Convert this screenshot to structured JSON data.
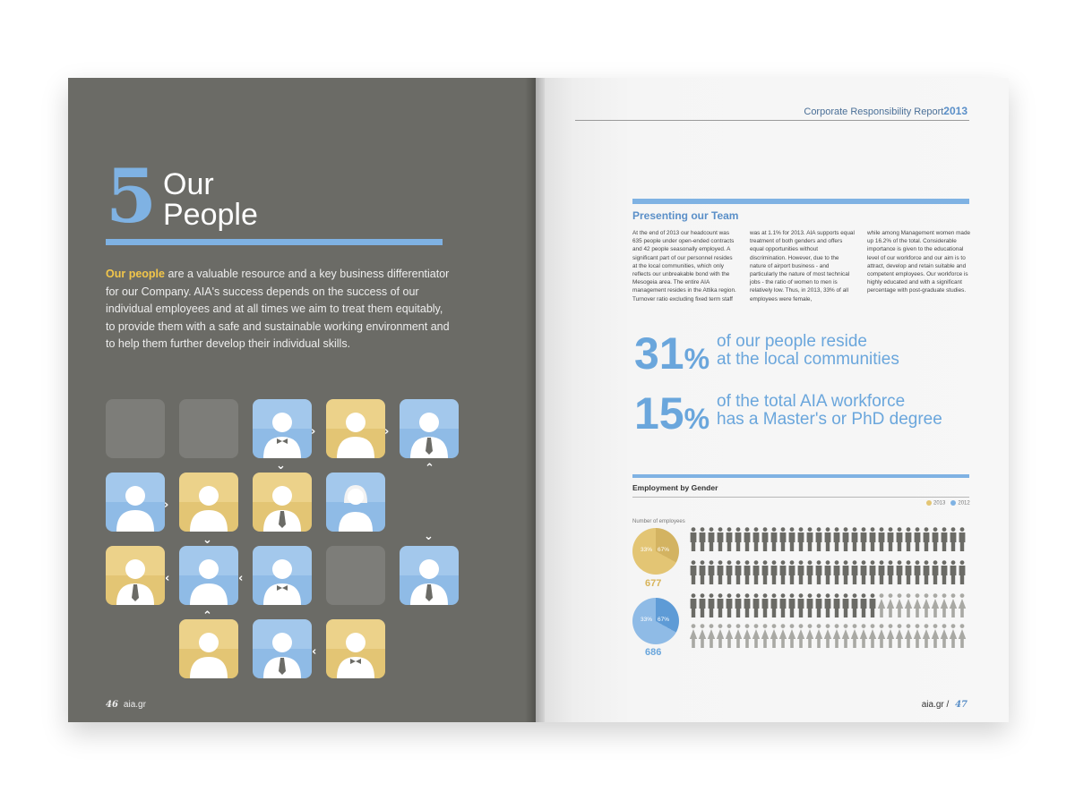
{
  "left": {
    "chapter_number": "5",
    "chapter_title_line1": "Our",
    "chapter_title_line2": "People",
    "intro_highlight": "Our people",
    "intro_rest": " are a valuable resource and a key business differentiator for our Company. AIA's success depends on the success of our individual employees and at all times we aim to treat them equitably, to provide them with a safe and sustainable working environment and to help them further develop their individual skills.",
    "folio_number": "46",
    "folio_site": "aia.gr"
  },
  "right": {
    "header_text": "Corporate Responsibility Report",
    "header_year": "2013",
    "section_title": "Presenting our Team",
    "col1": "At the end of 2013 our headcount was 635 people under open-ended contracts and 42 people seasonally employed. A significant part of our personnel resides at the local communities, which only reflects our unbreakable bond with the Mesogeia area. The entire AIA management resides in the Attika region. Turnover ratio excluding fixed term staff",
    "col2": "was at 1.1% for 2013.  AIA supports equal treatment of both genders and offers equal opportunities without discrimination. However, due to the nature of airport business - and particularly the nature of most technical jobs - the ratio of women to men is relatively low. Thus, in 2013, 33% of all employees were female,",
    "col3": "while among Management women made up 16.2% of the total.  Considerable importance is given to the educational level of our workforce and our aim is to attract, develop and retain suitable and competent employees. Our workforce is highly educated and with a significant percentage with post-graduate studies.",
    "stat1_value": "31",
    "stat1_unit": "%",
    "stat1_line1": "of our people reside",
    "stat1_line2": "at the local communities",
    "stat2_value": "15",
    "stat2_unit": "%",
    "stat2_line1": "of the total AIA workforce",
    "stat2_line2": "has a Master's or PhD degree",
    "employment_title": "Employment by Gender",
    "legend_2013": "2013",
    "legend_2012": "2012",
    "number_label": "Number of employees",
    "pie2013_female": "33%",
    "pie2013_male": "67%",
    "pie2013_total": "677",
    "pie2012_female": "33%",
    "pie2012_male": "67%",
    "pie2012_total": "686",
    "folio_site": "aia.gr",
    "folio_number": "47"
  },
  "colors": {
    "blue": "#7fb2e3",
    "yellow": "#e3c574",
    "gray_page": "#6b6b66"
  },
  "icons": [
    "person-icon",
    "woman-icon",
    "bowtie-person-icon",
    "tie-person-icon",
    "chevron-right-icon",
    "chevron-left-icon",
    "chevron-down-icon",
    "chevron-up-icon"
  ]
}
